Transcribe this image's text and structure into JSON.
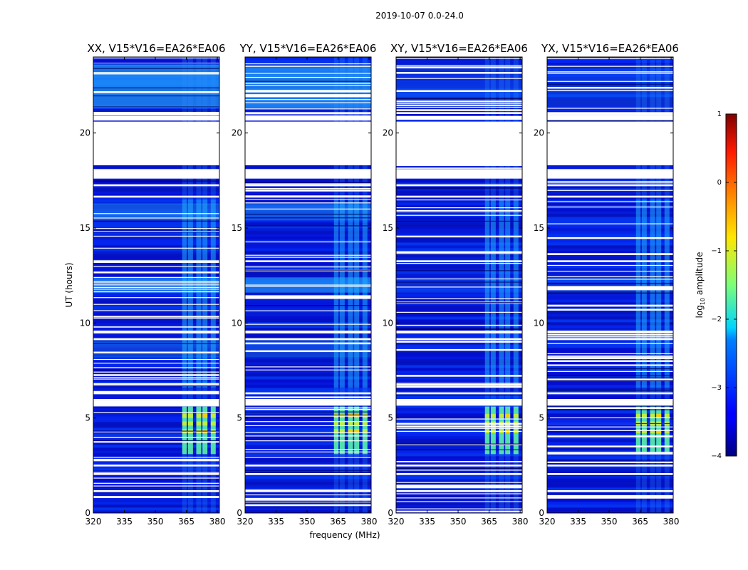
{
  "chart_data": {
    "type": "heatmap",
    "suptitle": "2019-10-07 0.0-24.0",
    "xlabel": "frequency (MHz)",
    "ylabel": "UT (hours)",
    "xlim": [
      320,
      381
    ],
    "ylim": [
      0,
      24
    ],
    "xticks": [
      "320",
      "335",
      "350",
      "365",
      "380"
    ],
    "yticks": [
      "0",
      "5",
      "10",
      "15",
      "20"
    ],
    "panels": [
      {
        "title": "XX, V15*V16=EA26*EA06"
      },
      {
        "title": "YY, V15*V16=EA26*EA06"
      },
      {
        "title": "XY, V15*V16=EA26*EA06"
      },
      {
        "title": "YX, V15*V16=EA26*EA06"
      }
    ],
    "colorbar": {
      "label_base": "log",
      "label_sub": "10",
      "label_rest": " amplitude",
      "ticks": [
        "1",
        "0",
        "−1",
        "−2",
        "−3",
        "−4"
      ],
      "range": [
        -4,
        1
      ],
      "colormap": "jet"
    },
    "blank_ut_ranges": [
      [
        17.6,
        18.1
      ],
      [
        18.3,
        20.6
      ]
    ],
    "rfi_band_mhz": [
      362,
      380
    ],
    "strong_rfi_ut_range": [
      3.1,
      5.6
    ]
  }
}
